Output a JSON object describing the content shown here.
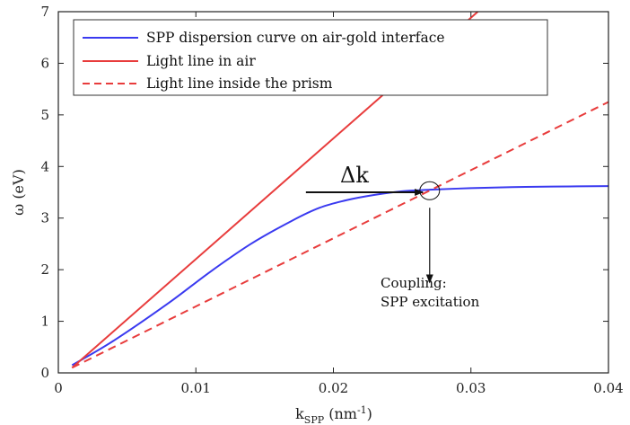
{
  "chart_data": {
    "type": "line",
    "title": "",
    "xlabel": "k",
    "xlabel_sub": "SPP",
    "xlabel_unit_pre": " (nm",
    "xlabel_unit_sup": "-1",
    "xlabel_unit_post": ")",
    "ylabel": "ω (eV)",
    "xlim": [
      0,
      0.04
    ],
    "ylim": [
      0,
      7
    ],
    "x_ticks": [
      0,
      0.01,
      0.02,
      0.03,
      0.04
    ],
    "x_tick_labels": [
      "0",
      "0.01",
      "0.02",
      "0.03",
      "0.04"
    ],
    "y_ticks": [
      0,
      1,
      2,
      3,
      4,
      5,
      6,
      7
    ],
    "y_tick_labels": [
      "0",
      "1",
      "2",
      "3",
      "4",
      "5",
      "6",
      "7"
    ],
    "grid": false,
    "legend_position": "top-left",
    "series": [
      {
        "name": "SPP dispersion curve on air-gold interface",
        "color": "#3a3af0",
        "style": "solid",
        "x": [
          0.001,
          0.004,
          0.008,
          0.011,
          0.014,
          0.017,
          0.019,
          0.021,
          0.023,
          0.025,
          0.027,
          0.03,
          0.033,
          0.036,
          0.04
        ],
        "y": [
          0.15,
          0.62,
          1.35,
          1.95,
          2.5,
          2.95,
          3.2,
          3.35,
          3.45,
          3.52,
          3.55,
          3.58,
          3.6,
          3.61,
          3.62
        ]
      },
      {
        "name": "Light line in air",
        "color": "#e83c3c",
        "style": "solid",
        "x": [
          0.001,
          0.0305
        ],
        "y": [
          0.1,
          7.0
        ]
      },
      {
        "name": "Light line inside the prism",
        "color": "#e83c3c",
        "style": "dashed",
        "x": [
          0.001,
          0.04
        ],
        "y": [
          0.1,
          5.25
        ]
      }
    ],
    "annotations": [
      {
        "text": "Δk",
        "type": "arrow",
        "from": [
          0.018,
          3.5
        ],
        "to": [
          0.0265,
          3.5
        ]
      },
      {
        "text": "Coupling:",
        "line2": "SPP excitation",
        "type": "arrow",
        "from": [
          0.027,
          3.2
        ],
        "to": [
          0.027,
          1.75
        ],
        "circle_at": [
          0.027,
          3.53
        ]
      }
    ]
  }
}
